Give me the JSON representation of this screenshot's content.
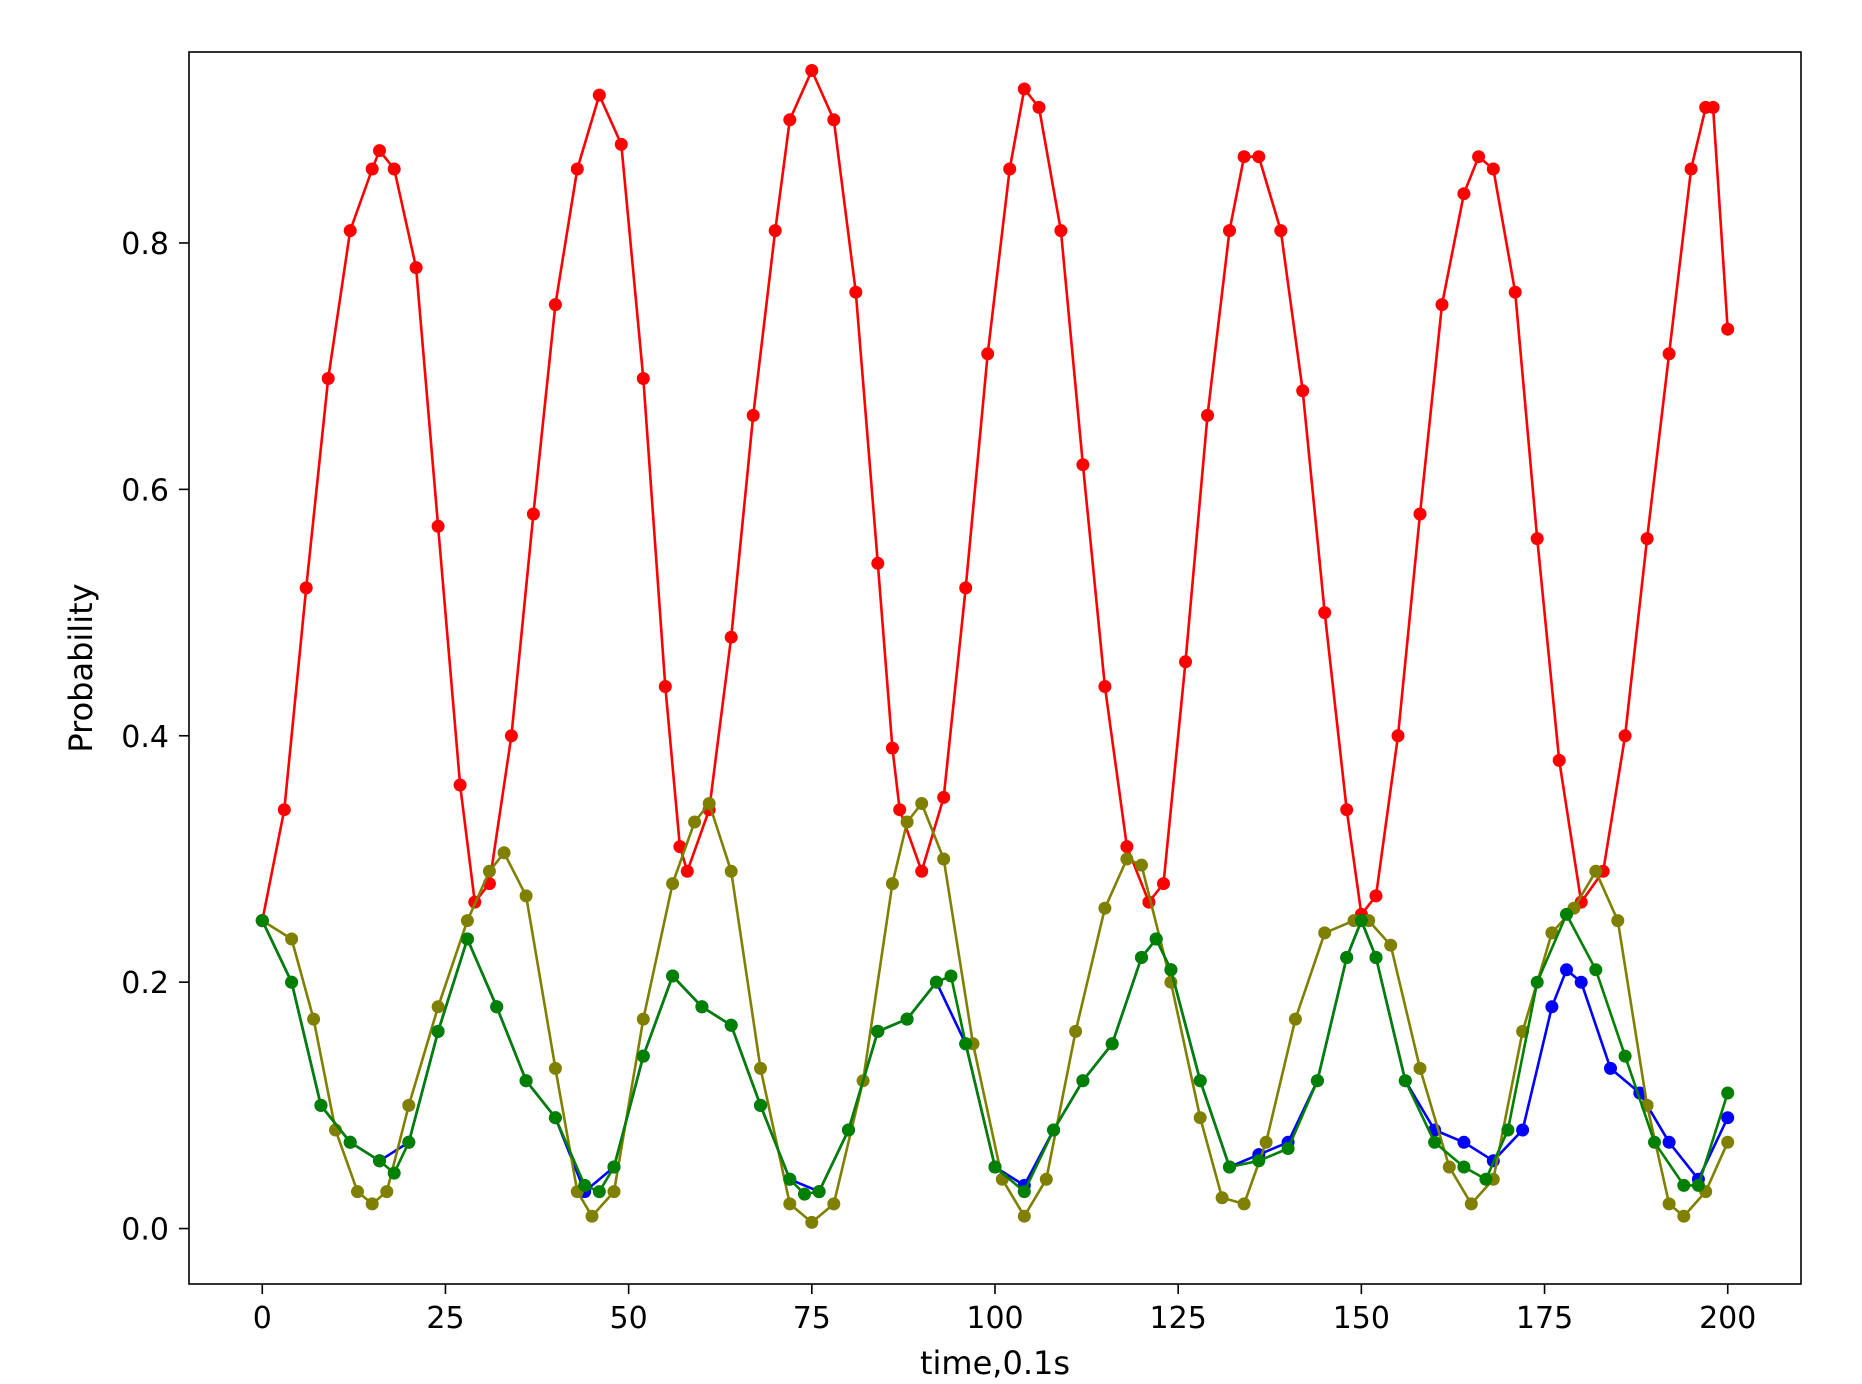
{
  "chart_data": {
    "type": "line",
    "title": "",
    "xlabel": "time,0.1s",
    "ylabel": "Probability",
    "xlim": [
      -10,
      210
    ],
    "ylim": [
      -0.045,
      0.955
    ],
    "xticks": [
      0,
      25,
      50,
      75,
      100,
      125,
      150,
      175,
      200
    ],
    "xtick_labels": [
      "0",
      "25",
      "50",
      "75",
      "100",
      "125",
      "150",
      "175",
      "200"
    ],
    "yticks": [
      0.0,
      0.2,
      0.4,
      0.6,
      0.8
    ],
    "ytick_labels": [
      "0.0",
      "0.2",
      "0.4",
      "0.6",
      "0.8"
    ],
    "grid": false,
    "legend": "none",
    "series": [
      {
        "color": "#ff0000",
        "x": [
          0,
          3,
          6,
          9,
          12,
          15,
          16,
          18,
          21,
          24,
          27,
          29,
          31,
          34,
          37,
          40,
          43,
          46,
          49,
          52,
          55,
          57,
          58,
          61,
          64,
          67,
          70,
          72,
          75,
          78,
          81,
          84,
          86,
          87,
          90,
          93,
          96,
          99,
          102,
          104,
          106,
          109,
          112,
          115,
          118,
          121,
          123,
          126,
          129,
          132,
          134,
          136,
          139,
          142,
          145,
          148,
          150,
          152,
          155,
          158,
          161,
          164,
          166,
          168,
          171,
          174,
          177,
          180,
          183,
          186,
          189,
          192,
          195,
          197,
          198,
          200
        ],
        "y": [
          0.25,
          0.34,
          0.52,
          0.69,
          0.81,
          0.86,
          0.875,
          0.86,
          0.78,
          0.57,
          0.36,
          0.265,
          0.28,
          0.4,
          0.58,
          0.75,
          0.86,
          0.92,
          0.88,
          0.69,
          0.44,
          0.31,
          0.29,
          0.34,
          0.48,
          0.66,
          0.81,
          0.9,
          0.94,
          0.9,
          0.76,
          0.54,
          0.39,
          0.34,
          0.29,
          0.35,
          0.52,
          0.71,
          0.86,
          0.925,
          0.91,
          0.81,
          0.62,
          0.44,
          0.31,
          0.265,
          0.28,
          0.46,
          0.66,
          0.81,
          0.87,
          0.87,
          0.81,
          0.68,
          0.5,
          0.34,
          0.255,
          0.27,
          0.4,
          0.58,
          0.75,
          0.84,
          0.87,
          0.86,
          0.76,
          0.56,
          0.38,
          0.265,
          0.29,
          0.4,
          0.56,
          0.71,
          0.86,
          0.91,
          0.91,
          0.73
        ]
      },
      {
        "color": "#0000ff",
        "x": [
          0,
          4,
          8,
          12,
          16,
          20,
          24,
          28,
          32,
          36,
          40,
          44,
          48,
          52,
          56,
          60,
          64,
          68,
          72,
          76,
          80,
          84,
          88,
          92,
          96,
          100,
          104,
          108,
          112,
          116,
          120,
          122,
          124,
          128,
          132,
          136,
          140,
          144,
          148,
          150,
          152,
          156,
          160,
          164,
          168,
          172,
          176,
          178,
          180,
          184,
          188,
          192,
          196,
          200
        ],
        "y": [
          0.25,
          0.2,
          0.1,
          0.07,
          0.055,
          0.07,
          0.16,
          0.235,
          0.18,
          0.12,
          0.09,
          0.03,
          0.05,
          0.14,
          0.205,
          0.18,
          0.165,
          0.1,
          0.04,
          0.03,
          0.08,
          0.16,
          0.17,
          0.2,
          0.15,
          0.05,
          0.035,
          0.08,
          0.12,
          0.15,
          0.22,
          0.235,
          0.21,
          0.12,
          0.05,
          0.06,
          0.07,
          0.12,
          0.22,
          0.25,
          0.22,
          0.12,
          0.08,
          0.07,
          0.055,
          0.08,
          0.18,
          0.21,
          0.2,
          0.13,
          0.11,
          0.07,
          0.04,
          0.09
        ]
      },
      {
        "color": "#808000",
        "x": [
          0,
          4,
          7,
          10,
          13,
          15,
          17,
          20,
          24,
          28,
          31,
          33,
          36,
          40,
          43,
          45,
          48,
          52,
          56,
          59,
          61,
          64,
          68,
          72,
          75,
          78,
          82,
          86,
          88,
          90,
          93,
          97,
          101,
          104,
          107,
          111,
          115,
          118,
          120,
          124,
          128,
          131,
          134,
          137,
          141,
          145,
          149,
          151,
          154,
          158,
          162,
          165,
          168,
          172,
          176,
          179,
          182,
          185,
          189,
          192,
          194,
          197,
          200
        ],
        "y": [
          0.25,
          0.235,
          0.17,
          0.08,
          0.03,
          0.02,
          0.03,
          0.1,
          0.18,
          0.25,
          0.29,
          0.305,
          0.27,
          0.13,
          0.03,
          0.01,
          0.03,
          0.17,
          0.28,
          0.33,
          0.345,
          0.29,
          0.13,
          0.02,
          0.005,
          0.02,
          0.12,
          0.28,
          0.33,
          0.345,
          0.3,
          0.15,
          0.04,
          0.01,
          0.04,
          0.16,
          0.26,
          0.3,
          0.295,
          0.2,
          0.09,
          0.025,
          0.02,
          0.07,
          0.17,
          0.24,
          0.25,
          0.25,
          0.23,
          0.13,
          0.05,
          0.02,
          0.04,
          0.16,
          0.24,
          0.26,
          0.29,
          0.25,
          0.1,
          0.02,
          0.01,
          0.03,
          0.07
        ]
      },
      {
        "color": "#008000",
        "x": [
          0,
          4,
          8,
          12,
          16,
          18,
          20,
          24,
          28,
          32,
          36,
          40,
          44,
          46,
          48,
          52,
          56,
          60,
          64,
          68,
          72,
          74,
          76,
          80,
          84,
          88,
          92,
          94,
          96,
          100,
          104,
          108,
          112,
          116,
          120,
          122,
          124,
          128,
          132,
          136,
          140,
          144,
          148,
          150,
          152,
          156,
          160,
          164,
          167,
          170,
          174,
          178,
          182,
          186,
          190,
          194,
          196,
          200
        ],
        "y": [
          0.25,
          0.2,
          0.1,
          0.07,
          0.055,
          0.045,
          0.07,
          0.16,
          0.235,
          0.18,
          0.12,
          0.09,
          0.035,
          0.03,
          0.05,
          0.14,
          0.205,
          0.18,
          0.165,
          0.1,
          0.04,
          0.028,
          0.03,
          0.08,
          0.16,
          0.17,
          0.2,
          0.205,
          0.15,
          0.05,
          0.03,
          0.08,
          0.12,
          0.15,
          0.22,
          0.235,
          0.21,
          0.12,
          0.05,
          0.055,
          0.065,
          0.12,
          0.22,
          0.25,
          0.22,
          0.12,
          0.07,
          0.05,
          0.04,
          0.08,
          0.2,
          0.255,
          0.21,
          0.14,
          0.07,
          0.035,
          0.035,
          0.11
        ]
      }
    ]
  }
}
